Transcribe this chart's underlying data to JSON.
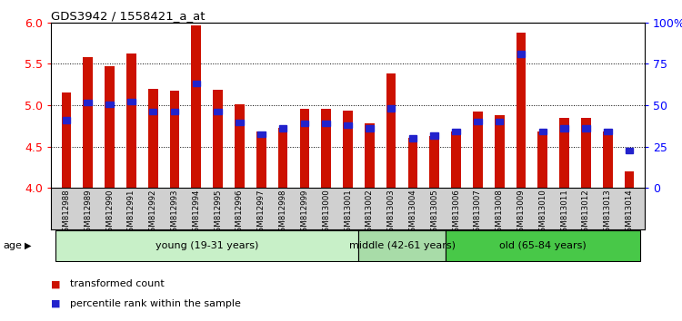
{
  "title": "GDS3942 / 1558421_a_at",
  "samples": [
    "GSM812988",
    "GSM812989",
    "GSM812990",
    "GSM812991",
    "GSM812992",
    "GSM812993",
    "GSM812994",
    "GSM812995",
    "GSM812996",
    "GSM812997",
    "GSM812998",
    "GSM812999",
    "GSM813000",
    "GSM813001",
    "GSM813002",
    "GSM813003",
    "GSM813004",
    "GSM813005",
    "GSM813006",
    "GSM813007",
    "GSM813008",
    "GSM813009",
    "GSM813010",
    "GSM813011",
    "GSM813012",
    "GSM813013",
    "GSM813014"
  ],
  "red_values": [
    5.15,
    5.58,
    5.47,
    5.62,
    5.2,
    5.18,
    5.97,
    5.19,
    5.01,
    4.68,
    4.72,
    4.95,
    4.95,
    4.93,
    4.78,
    5.38,
    4.6,
    4.63,
    4.68,
    4.92,
    4.88,
    5.88,
    4.68,
    4.85,
    4.85,
    4.68,
    4.2
  ],
  "blue_values": [
    4.82,
    5.03,
    5.01,
    5.04,
    4.92,
    4.92,
    5.26,
    4.92,
    4.79,
    4.65,
    4.72,
    4.78,
    4.78,
    4.76,
    4.72,
    4.96,
    4.6,
    4.63,
    4.68,
    4.8,
    4.8,
    5.62,
    4.68,
    4.72,
    4.72,
    4.68,
    4.45
  ],
  "groups": [
    {
      "label": "young (19-31 years)",
      "start": 0,
      "end": 14,
      "color": "#c8f0c8"
    },
    {
      "label": "middle (42-61 years)",
      "start": 14,
      "end": 18,
      "color": "#a8dca8"
    },
    {
      "label": "old (65-84 years)",
      "start": 18,
      "end": 27,
      "color": "#48c848"
    }
  ],
  "ylim_left": [
    4.0,
    6.0
  ],
  "yticks_left": [
    4.0,
    4.5,
    5.0,
    5.5,
    6.0
  ],
  "ytick_labels_right": [
    "0",
    "25",
    "50",
    "75",
    "100%"
  ],
  "yticks_right": [
    0,
    25,
    50,
    75,
    100
  ],
  "bar_color": "#cc1100",
  "blue_color": "#2222cc",
  "age_label": "age",
  "legend_red": "transformed count",
  "legend_blue": "percentile rank within the sample"
}
